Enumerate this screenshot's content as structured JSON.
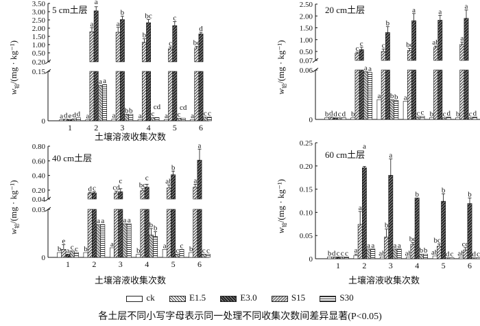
{
  "chart_data": {
    "type": "bar",
    "note": "各土层不同小写字母表示同一处理不同收集次数间差异显著(P<0.05)",
    "legend": {
      "placement": "bottom",
      "series": [
        "ck",
        "E1.5",
        "E3.0",
        "S15",
        "S30"
      ]
    },
    "series_fills": {
      "ck": "white",
      "E1.5": "light diagonal hatch",
      "E3.0": "dark crosshatch",
      "S15": "gray diagonal hatch",
      "S30": "horizontal lines"
    },
    "panels": [
      {
        "title": "5 cm土层",
        "xlabel": "土壤溶液收集次数",
        "ylabel_main": "w",
        "ylabel_sub": "铅",
        "ylabel_unit": "/(mg · kg⁻¹)",
        "categories": [
          "1",
          "2",
          "3",
          "4",
          "5",
          "6"
        ],
        "y_break": {
          "lower": [
            0,
            0.15
          ],
          "upper": [
            0.2,
            3.5
          ]
        },
        "yticks_lower": [
          "0",
          "0.15"
        ],
        "yticks_upper": [
          "0.20",
          "0.50",
          "1.00",
          "1.50",
          "2.00",
          "2.50",
          "3.00",
          "3.50"
        ],
        "series": [
          {
            "name": "ck",
            "values": [
              0.003,
              0.003,
              0.005,
              0.004,
              0.004,
              0.004
            ],
            "err": [
              0,
              0,
              0,
              0,
              0,
              0
            ],
            "letters": [
              "a",
              "a",
              "a",
              "a",
              "a",
              "a"
            ]
          },
          {
            "name": "E1.5",
            "values": [
              0.005,
              1.78,
              1.75,
              1.15,
              0.75,
              0.8
            ],
            "err": [
              0,
              0.25,
              0.3,
              0.2,
              0.1,
              0.1
            ],
            "letters": [
              "d",
              "a",
              "a",
              "b",
              "c",
              "bc"
            ]
          },
          {
            "name": "E3.0",
            "values": [
              0.004,
              3.05,
              2.52,
              2.33,
              2.15,
              1.65
            ],
            "err": [
              0,
              0.25,
              0.2,
              0.2,
              0.25,
              0.1
            ],
            "letters": [
              "e",
              "a",
              "b",
              "bc",
              "c",
              "d"
            ]
          },
          {
            "name": "S15",
            "values": [
              0.006,
              0.108,
              0.02,
              0.01,
              0.008,
              0.011
            ],
            "err": [
              0,
              0,
              0,
              0,
              0,
              0
            ],
            "letters": [
              "d",
              "a",
              "b",
              "c",
              "c",
              "c"
            ]
          },
          {
            "name": "S30",
            "values": [
              0.009,
              0.11,
              0.02,
              0.01,
              0.008,
              0.011
            ],
            "err": [
              0,
              0,
              0,
              0,
              0,
              0
            ],
            "letters": [
              "d",
              "a",
              "b",
              "cd",
              "cd",
              "c"
            ]
          }
        ]
      },
      {
        "title": "20 cm土层",
        "xlabel": "",
        "ylabel_main": "w",
        "ylabel_sub": "铅",
        "ylabel_unit": "/(mg · kg⁻¹)",
        "categories": [
          "1",
          "2",
          "3",
          "4",
          "5",
          "6"
        ],
        "y_break": {
          "lower": [
            0,
            0.06
          ],
          "upper": [
            0.07,
            2.5
          ]
        },
        "yticks_lower": [
          "0",
          "0.06"
        ],
        "yticks_upper": [
          "0.07",
          "0.50",
          "1.00",
          "1.50",
          "2.00",
          "2.50"
        ],
        "series": [
          {
            "name": "ck",
            "values": [
              0.002,
              0.002,
              0.024,
              0.022,
              0.002,
              0.002
            ],
            "err": [
              0,
              0,
              0,
              0,
              0,
              0
            ],
            "letters": [
              "b",
              "b",
              "a",
              "a",
              "b",
              "b"
            ]
          },
          {
            "name": "E1.5",
            "values": [
              0.003,
              0.42,
              0.5,
              0.55,
              0.68,
              0.8
            ],
            "err": [
              0,
              0.05,
              0.1,
              0.08,
              0.05,
              0.1
            ],
            "letters": [
              "d",
              "c",
              "c",
              "bc",
              "ab",
              "a"
            ]
          },
          {
            "name": "E3.0",
            "values": [
              0.002,
              0.58,
              1.3,
              1.8,
              1.82,
              1.9
            ],
            "err": [
              0,
              0.1,
              0.25,
              0.3,
              0.2,
              0.35
            ],
            "letters": [
              "d",
              "c",
              "b",
              "a",
              "a",
              "a"
            ]
          },
          {
            "name": "S15",
            "values": [
              0.002,
              0.058,
              0.024,
              0.003,
              0.002,
              0.002
            ],
            "err": [
              0,
              0,
              0,
              0,
              0,
              0
            ],
            "letters": [
              "c",
              "a",
              "b",
              "c",
              "c",
              "c"
            ]
          },
          {
            "name": "S30",
            "values": [
              0.002,
              0.057,
              0.023,
              0.004,
              0.003,
              0.003
            ],
            "err": [
              0,
              0,
              0,
              0,
              0,
              0
            ],
            "letters": [
              "d",
              "a",
              "b",
              "c",
              "d",
              "d"
            ]
          }
        ]
      },
      {
        "title": "40 cm土层",
        "xlabel": "土壤溶液收集次数",
        "ylabel_main": "w",
        "ylabel_sub": "铅",
        "ylabel_unit": "/(mg · kg⁻¹)",
        "categories": [
          "1",
          "2",
          "3",
          "4",
          "5",
          "6"
        ],
        "y_break": {
          "lower": [
            0,
            0.03
          ],
          "upper": [
            0.04,
            0.8
          ]
        },
        "yticks_lower": [
          "0",
          "0.03"
        ],
        "yticks_upper": [
          "0.04",
          "0.20",
          "0.40",
          "0.60",
          "0.80"
        ],
        "series": [
          {
            "name": "ck",
            "values": [
              0.003,
              0.003,
              0.006,
              0.002,
              0.005,
              0.003
            ],
            "err": [
              0,
              0,
              0,
              0,
              0,
              0
            ],
            "letters": [
              "b",
              "b",
              "a",
              "b",
              "a",
              "b"
            ]
          },
          {
            "name": "E1.5",
            "values": [
              0.005,
              0.14,
              0.15,
              0.19,
              0.23,
              0.24
            ],
            "err": [
              0.003,
              0.02,
              0.03,
              0.03,
              0.04,
              0.04
            ],
            "letters": [
              "e",
              "d",
              "cd",
              "bc",
              "ab",
              "a"
            ]
          },
          {
            "name": "E3.0",
            "values": [
              0.002,
              0.15,
              0.17,
              0.24,
              0.41,
              0.61
            ],
            "err": [
              0,
              0.02,
              0.05,
              0.04,
              0.05,
              0.15
            ],
            "letters": [
              "a",
              "c",
              "c",
              "c",
              "b",
              "a"
            ]
          },
          {
            "name": "S15",
            "values": [
              0.004,
              0.0205,
              0.021,
              0.014,
              0.002,
              0.002
            ],
            "err": [
              0,
              0,
              0,
              0.004,
              0,
              0
            ],
            "letters": [
              "c",
              "a",
              "a",
              "b",
              "c",
              "c"
            ]
          },
          {
            "name": "S30",
            "values": [
              0.003,
              0.0205,
              0.021,
              0.013,
              0.005,
              0.002
            ],
            "err": [
              0,
              0,
              0,
              0.003,
              0,
              0
            ],
            "letters": [
              "c",
              "a",
              "a",
              "b",
              "c",
              "c"
            ]
          }
        ]
      },
      {
        "title": "60 cm土层",
        "xlabel": "土壤溶液收集次数",
        "ylabel_main": "w",
        "ylabel_sub": "铅",
        "ylabel_unit": "/(mg · kg⁻¹)",
        "categories": [
          "1",
          "2",
          "3",
          "4",
          "5",
          "6"
        ],
        "ylim": [
          0,
          0.25
        ],
        "yticks": [
          "0",
          "0.05",
          "0.10",
          "0.15",
          "0.20",
          "0.25"
        ],
        "series": [
          {
            "name": "ck",
            "values": [
              0.004,
              0.007,
              0.004,
              0.004,
              0.006,
              0.004
            ],
            "err": [
              0,
              0.003,
              0,
              0,
              0,
              0
            ],
            "letters": [
              "b",
              "a",
              "ab",
              "ab",
              "ab",
              "ab"
            ]
          },
          {
            "name": "E1.5",
            "values": [
              0.004,
              0.074,
              0.047,
              0.031,
              0.027,
              0.019
            ],
            "err": [
              0,
              0.028,
              0.017,
              0.004,
              0.005,
              0.005
            ],
            "letters": [
              "d",
              "a",
              "b",
              "bc",
              "bcd",
              "cd"
            ]
          },
          {
            "name": "E3.0",
            "values": [
              0.004,
              0.196,
              0.18,
              0.131,
              0.124,
              0.119
            ],
            "err": [
              0,
              0.003,
              0.035,
              0,
              0.016,
              0.012
            ],
            "letters": [
              "c",
              "a",
              "a",
              "b",
              "b",
              "b"
            ]
          },
          {
            "name": "S15",
            "values": [
              0.004,
              0.021,
              0.021,
              0.01,
              0.002,
              0.002
            ],
            "err": [
              0,
              0,
              0,
              0,
              0,
              0
            ],
            "letters": [
              "c",
              "a",
              "a",
              "b",
              "d",
              "d"
            ]
          },
          {
            "name": "S30",
            "values": [
              0.004,
              0.021,
              0.021,
              0.01,
              0.002,
              0.002
            ],
            "err": [
              0,
              0,
              0,
              0,
              0,
              0
            ],
            "letters": [
              "c",
              "a",
              "a",
              "b",
              "c",
              "c"
            ]
          }
        ]
      }
    ]
  }
}
